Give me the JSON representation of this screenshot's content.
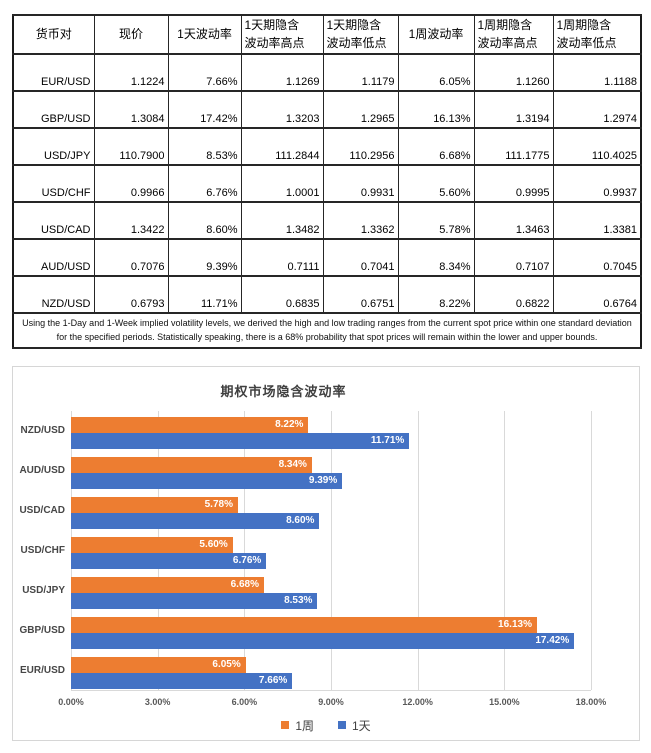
{
  "table": {
    "columns": [
      [
        "货币对"
      ],
      [
        "现价"
      ],
      [
        "1天波动率"
      ],
      [
        "1天期隐含",
        "波动率高点"
      ],
      [
        "1天期隐含",
        "波动率低点"
      ],
      [
        "1周波动率"
      ],
      [
        "1周期隐含",
        "波动率高点"
      ],
      [
        "1周期隐含",
        "波动率低点"
      ]
    ],
    "rows": [
      [
        "EUR/USD",
        "1.1224",
        "7.66%",
        "1.1269",
        "1.1179",
        "6.05%",
        "1.1260",
        "1.1188"
      ],
      [
        "GBP/USD",
        "1.3084",
        "17.42%",
        "1.3203",
        "1.2965",
        "16.13%",
        "1.3194",
        "1.2974"
      ],
      [
        "USD/JPY",
        "110.7900",
        "8.53%",
        "111.2844",
        "110.2956",
        "6.68%",
        "111.1775",
        "110.4025"
      ],
      [
        "USD/CHF",
        "0.9966",
        "6.76%",
        "1.0001",
        "0.9931",
        "5.60%",
        "0.9995",
        "0.9937"
      ],
      [
        "USD/CAD",
        "1.3422",
        "8.60%",
        "1.3482",
        "1.3362",
        "5.78%",
        "1.3463",
        "1.3381"
      ],
      [
        "AUD/USD",
        "0.7076",
        "9.39%",
        "0.7111",
        "0.7041",
        "8.34%",
        "0.7107",
        "0.7045"
      ],
      [
        "NZD/USD",
        "0.6793",
        "11.71%",
        "0.6835",
        "0.6751",
        "8.22%",
        "0.6822",
        "0.6764"
      ]
    ],
    "footnote": "Using the 1-Day and 1-Week implied volatility levels, we derived the high and low trading ranges from the current spot price within one standard deviation for the specified periods. Statistically speaking, there is a 68% probability that spot prices will remain within the lower and upper bounds."
  },
  "chart_data": {
    "type": "bar",
    "orientation": "horizontal",
    "title": "期权市场隐含波动率",
    "categories": [
      "NZD/USD",
      "AUD/USD",
      "USD/CAD",
      "USD/CHF",
      "USD/JPY",
      "GBP/USD",
      "EUR/USD"
    ],
    "series": [
      {
        "name": "1周",
        "color": "#ED7D31",
        "values": [
          8.22,
          8.34,
          5.78,
          5.6,
          6.68,
          16.13,
          6.05
        ]
      },
      {
        "name": "1天",
        "color": "#4472C4",
        "values": [
          11.71,
          9.39,
          8.6,
          6.76,
          8.53,
          17.42,
          7.66
        ]
      }
    ],
    "x_ticks": [
      "0.00%",
      "3.00%",
      "6.00%",
      "9.00%",
      "12.00%",
      "15.00%",
      "18.00%"
    ],
    "xlim": [
      0,
      18
    ],
    "value_suffix": "%",
    "legend_position": "bottom",
    "gridlines": true
  }
}
